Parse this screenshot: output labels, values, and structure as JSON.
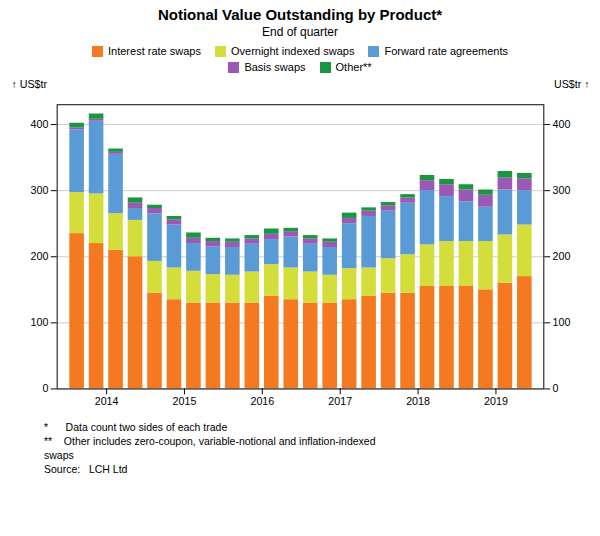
{
  "chart_data": {
    "type": "bar",
    "title": "Notional Value Outstanding by Product*",
    "subtitle": "End of quarter",
    "ylabel": "US$tr",
    "y2label": "US$tr",
    "categories": [
      null,
      "2014",
      null,
      null,
      null,
      "2015",
      null,
      null,
      null,
      "2016",
      null,
      null,
      null,
      "2017",
      null,
      null,
      null,
      "2018",
      null,
      null,
      null,
      "2019",
      null,
      null
    ],
    "series": [
      {
        "name": "Interest rate swaps",
        "color": "#f47920",
        "values": [
          235,
          220,
          210,
          200,
          145,
          135,
          130,
          130,
          130,
          130,
          140,
          135,
          130,
          130,
          135,
          140,
          145,
          145,
          155,
          155,
          155,
          150,
          160,
          170
        ]
      },
      {
        "name": "Overnight indexed swaps",
        "color": "#d4de3a",
        "values": [
          62,
          75,
          55,
          55,
          48,
          48,
          48,
          43,
          42,
          47,
          48,
          48,
          47,
          42,
          47,
          43,
          52,
          58,
          63,
          68,
          68,
          73,
          73,
          78
        ]
      },
      {
        "name": "Forward rate agreements",
        "color": "#5b9bd5",
        "values": [
          95,
          110,
          90,
          18,
          72,
          65,
          42,
          42,
          42,
          42,
          38,
          47,
          42,
          42,
          68,
          78,
          72,
          78,
          82,
          68,
          60,
          52,
          68,
          52
        ]
      },
      {
        "name": "Basis swaps",
        "color": "#9b59b6",
        "values": [
          3,
          3,
          3,
          8,
          8,
          8,
          8,
          8,
          8,
          8,
          8,
          8,
          8,
          8,
          8,
          8,
          8,
          8,
          15,
          18,
          18,
          18,
          18,
          18
        ]
      },
      {
        "name": "Other**",
        "color": "#1a9641",
        "values": [
          7,
          8,
          5,
          8,
          5,
          5,
          8,
          5,
          5,
          5,
          8,
          5,
          5,
          5,
          8,
          5,
          5,
          5,
          8,
          8,
          8,
          8,
          10,
          8
        ]
      }
    ],
    "ylim": [
      0,
      430
    ],
    "yticks": [
      0,
      100,
      200,
      300,
      400
    ],
    "y2lim": [
      0,
      430
    ],
    "y2ticks": [
      0,
      100,
      200,
      300,
      400
    ],
    "stacked": true,
    "grid": true,
    "legend": "top",
    "annotations": [
      "*      Data count two sides of each trade",
      "**    Other includes zero-coupon, variable-notional and inflation-indexed",
      "swaps",
      "Source:   LCH Ltd"
    ]
  }
}
